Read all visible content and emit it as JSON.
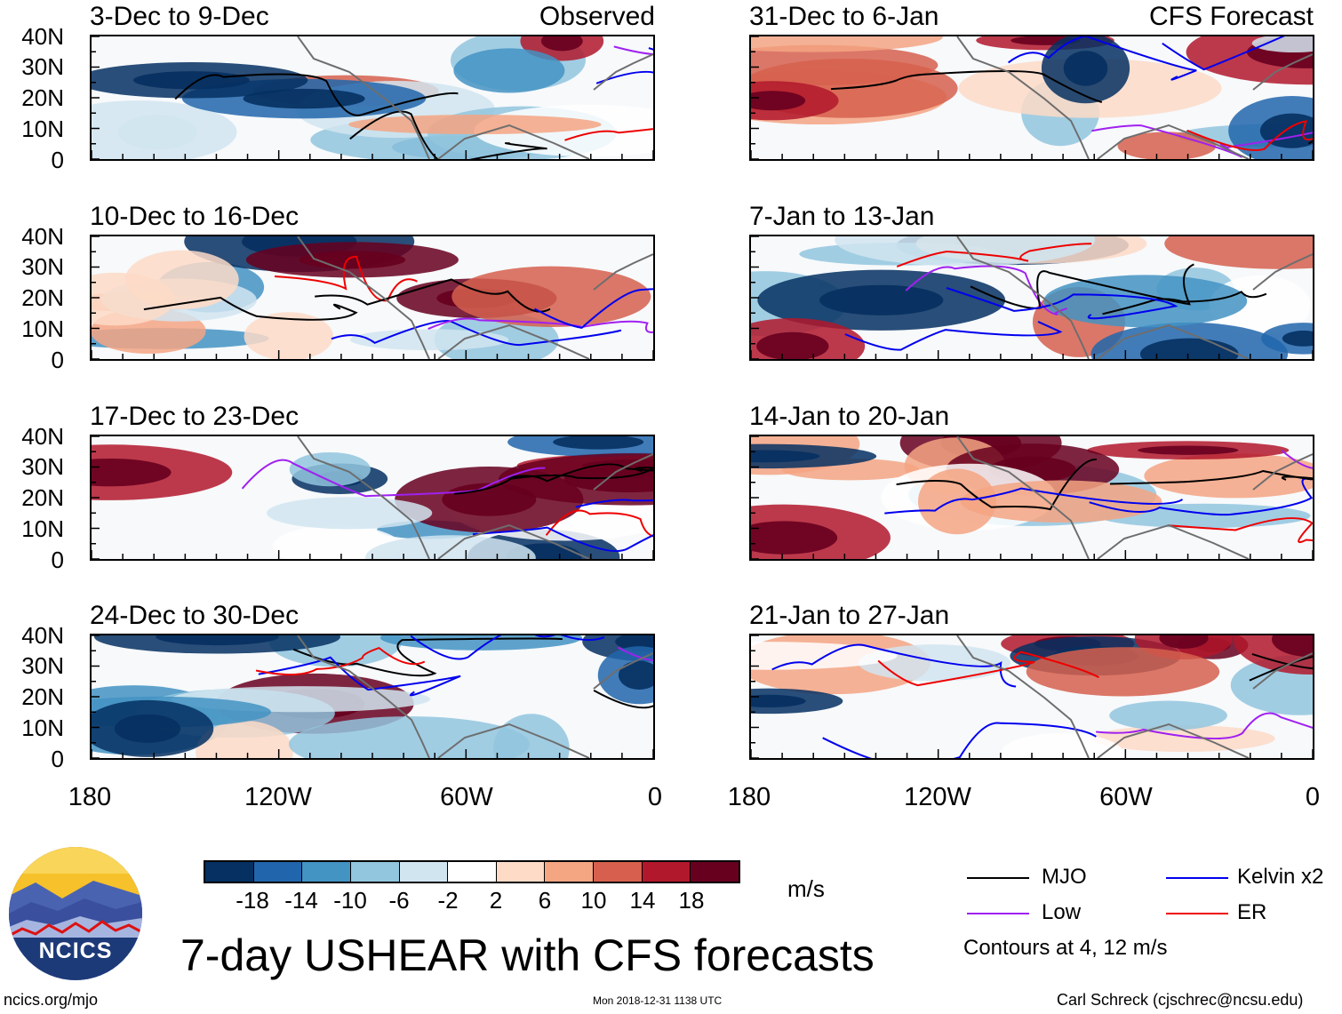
{
  "header": {
    "left_label": "Observed",
    "right_label": "CFS Forecast"
  },
  "observed_panels": [
    {
      "title": "3-Dec to 9-Dec"
    },
    {
      "title": "10-Dec to 16-Dec"
    },
    {
      "title": "17-Dec to 23-Dec"
    },
    {
      "title": "24-Dec to 30-Dec"
    }
  ],
  "forecast_panels": [
    {
      "title": "31-Dec to 6-Jan"
    },
    {
      "title": "7-Jan to 13-Jan"
    },
    {
      "title": "14-Jan to 20-Jan"
    },
    {
      "title": "21-Jan to 27-Jan"
    }
  ],
  "y_axis_labels": [
    "40N",
    "30N",
    "20N",
    "10N",
    "0"
  ],
  "x_axis_labels": [
    "180",
    "120W",
    "60W",
    "0"
  ],
  "colorbar": {
    "labels": [
      "-18",
      "-14",
      "-10",
      "-6",
      "-2",
      "2",
      "6",
      "10",
      "14",
      "18"
    ],
    "colors": [
      "#053061",
      "#2166ac",
      "#4393c3",
      "#92c5de",
      "#d1e5f0",
      "#ffffff",
      "#fddbc7",
      "#f4a582",
      "#d6604d",
      "#b2182b",
      "#67001f"
    ],
    "units": "m/s"
  },
  "legend": {
    "items": [
      {
        "label": "MJO",
        "color": "#000000"
      },
      {
        "label": "Kelvin x2",
        "color": "#0000ee"
      },
      {
        "label": "Low",
        "color": "#a020f0"
      },
      {
        "label": "ER",
        "color": "#ee0000"
      }
    ],
    "note": "Contours at 4, 12 m/s"
  },
  "main_title": "7-day USHEAR with CFS forecasts",
  "logo": {
    "text": "NCICS"
  },
  "footer": {
    "url": "ncics.org/mjo",
    "timestamp": "Mon 2018-12-31 1138 UTC",
    "credit": "Carl Schreck (cjschrec@ncsu.edu)"
  }
}
